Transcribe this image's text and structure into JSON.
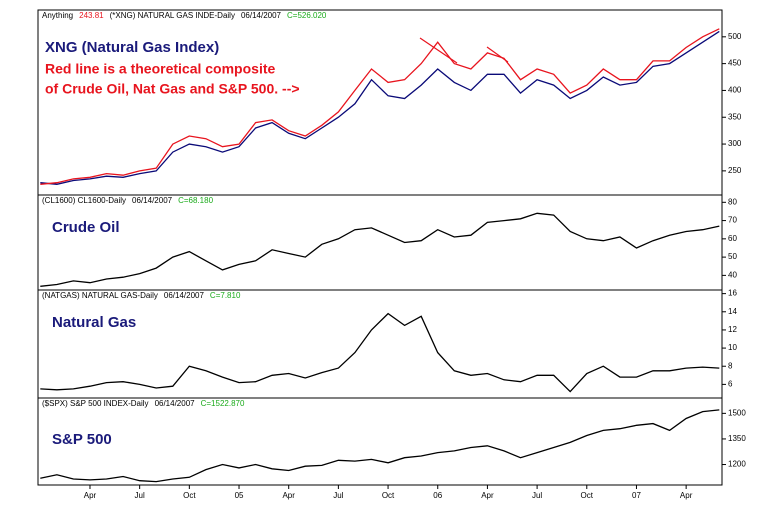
{
  "chart_data": [
    {
      "type": "line",
      "prefix": "Anything",
      "last": "243.81",
      "symbol": "(*XNG) NATURAL GAS INDE-Daily",
      "date": "06/14/2007",
      "close": "C=526.020",
      "title": "XNG (Natural Gas Index)",
      "annotation": [
        "Red line is a theoretical composite",
        "of Crude Oil, Nat Gas and S&P 500. -->"
      ],
      "ylim": [
        205,
        550
      ],
      "yticks": [
        250,
        300,
        350,
        400,
        450,
        500
      ],
      "series": [
        {
          "name": "XNG",
          "color": "#0a0a78",
          "values": [
            228,
            225,
            232,
            235,
            240,
            238,
            245,
            250,
            285,
            300,
            295,
            285,
            295,
            330,
            340,
            320,
            310,
            330,
            350,
            375,
            420,
            390,
            385,
            410,
            440,
            415,
            400,
            430,
            430,
            395,
            420,
            410,
            385,
            400,
            425,
            410,
            415,
            445,
            450,
            470,
            490,
            510
          ]
        },
        {
          "name": "Composite",
          "color": "#e8141e",
          "values": [
            225,
            228,
            235,
            238,
            245,
            242,
            250,
            255,
            300,
            315,
            310,
            295,
            300,
            340,
            345,
            325,
            315,
            335,
            360,
            400,
            440,
            415,
            420,
            450,
            490,
            450,
            440,
            470,
            460,
            420,
            440,
            430,
            395,
            410,
            440,
            420,
            420,
            455,
            455,
            480,
            500,
            515
          ]
        }
      ]
    },
    {
      "type": "line",
      "symbol": "(CL1600) CL1600-Daily",
      "date": "06/14/2007",
      "close": "C=68.180",
      "title": "Crude Oil",
      "ylim": [
        32,
        84
      ],
      "yticks": [
        40,
        50,
        60,
        70,
        80
      ],
      "series": [
        {
          "name": "Crude Oil",
          "color": "#000000",
          "values": [
            34,
            35,
            37,
            36,
            38,
            39,
            41,
            44,
            50,
            53,
            48,
            43,
            46,
            48,
            54,
            52,
            50,
            57,
            60,
            65,
            66,
            62,
            58,
            59,
            65,
            61,
            62,
            69,
            70,
            71,
            74,
            73,
            64,
            60,
            59,
            61,
            55,
            59,
            62,
            64,
            65,
            67
          ]
        }
      ]
    },
    {
      "type": "line",
      "symbol": "(NATGAS) NATURAL GAS-Daily",
      "date": "06/14/2007",
      "close": "C=7.810",
      "title": "Natural Gas",
      "ylim": [
        4.5,
        16.4
      ],
      "yticks": [
        6,
        8,
        10,
        12,
        14,
        16
      ],
      "series": [
        {
          "name": "Natural Gas",
          "color": "#000000",
          "values": [
            5.5,
            5.4,
            5.5,
            5.8,
            6.2,
            6.3,
            6.0,
            5.6,
            5.8,
            8.0,
            7.5,
            6.8,
            6.2,
            6.3,
            7.0,
            7.2,
            6.7,
            7.3,
            7.8,
            9.5,
            12.0,
            13.8,
            12.5,
            13.5,
            9.5,
            7.5,
            7.0,
            7.2,
            6.5,
            6.3,
            7.0,
            7.0,
            5.2,
            7.2,
            8.0,
            6.8,
            6.8,
            7.5,
            7.5,
            7.8,
            7.9,
            7.8
          ]
        }
      ]
    },
    {
      "type": "line",
      "symbol": "($SPX) S&P 500 INDEX-Daily",
      "date": "06/14/2007",
      "close": "C=1522.870",
      "title": "S&P 500",
      "ylim": [
        1080,
        1590
      ],
      "yticks": [
        1200,
        1350,
        1500
      ],
      "categories": [
        null,
        null,
        null,
        "Apr",
        null,
        null,
        "Jul",
        null,
        null,
        "Oct",
        null,
        null,
        "05",
        null,
        null,
        "Apr",
        null,
        null,
        "Jul",
        null,
        null,
        "Oct",
        null,
        null,
        "06",
        null,
        null,
        "Apr",
        null,
        null,
        "Jul",
        null,
        null,
        "Oct",
        null,
        null,
        "07",
        null,
        null,
        "Apr",
        null,
        null
      ],
      "series": [
        {
          "name": "S&P 500",
          "color": "#000000",
          "values": [
            1120,
            1140,
            1115,
            1110,
            1115,
            1130,
            1105,
            1100,
            1115,
            1125,
            1170,
            1200,
            1180,
            1200,
            1175,
            1165,
            1190,
            1195,
            1225,
            1220,
            1230,
            1210,
            1240,
            1250,
            1270,
            1280,
            1300,
            1310,
            1280,
            1240,
            1270,
            1300,
            1330,
            1370,
            1400,
            1410,
            1430,
            1440,
            1400,
            1470,
            1510,
            1520
          ]
        }
      ]
    }
  ]
}
